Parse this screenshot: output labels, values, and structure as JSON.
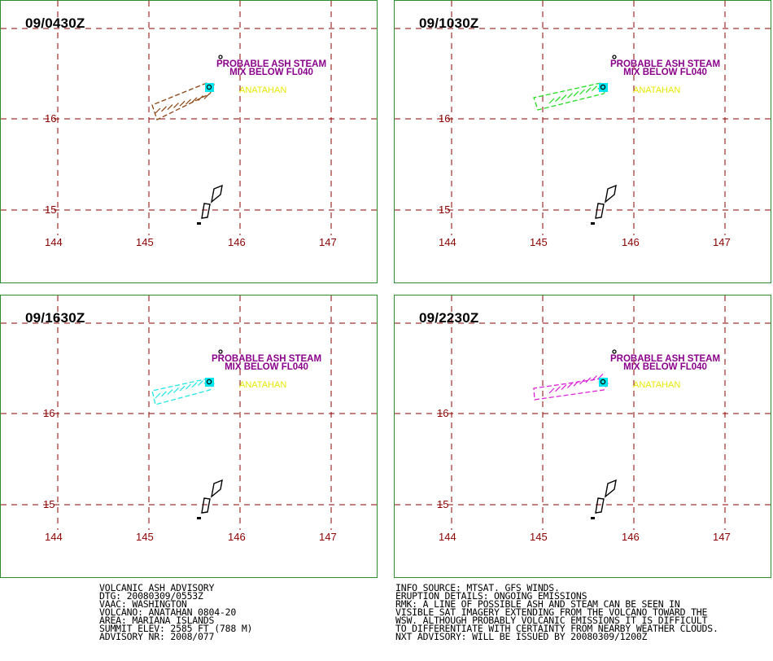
{
  "panels": [
    {
      "time": "09/0430Z",
      "plume_color": "#8b4513"
    },
    {
      "time": "09/1030Z",
      "plume_color": "#22dd22"
    },
    {
      "time": "09/1630Z",
      "plume_color": "#22e6e6"
    },
    {
      "time": "09/2230Z",
      "plume_color": "#dd22dd"
    }
  ],
  "map": {
    "lon_ticks": [
      "144",
      "145",
      "146",
      "147"
    ],
    "lat_ticks": [
      "16",
      "15"
    ],
    "annotation_line1": "PROBABLE ASH STEAM",
    "annotation_line2": "MIX BELOW FL040",
    "volcano_label": "ANATAHAN",
    "colors": {
      "grid": "#8b0000",
      "annotation": "#8b008b",
      "volcano_label": "#e8e800",
      "volcano_marker": "#00e5ee",
      "border": "#2e8b2e"
    }
  },
  "advisory_left": [
    "VOLCANIC ASH ADVISORY",
    "DTG: 20080309/0553Z",
    "VAAC: WASHINGTON",
    "VOLCANO: ANATAHAN 0804-20",
    "AREA: MARIANA ISLANDS",
    "SUMMIT ELEV: 2585 FT (788 M)",
    "ADVISORY NR: 2008/077"
  ],
  "advisory_right": [
    "INFO SOURCE: MTSAT. GFS WINDS.",
    "ERUPTION DETAILS: ONGOING EMISSIONS",
    "RMK: A LINE OF POSSIBLE ASH AND STEAM CAN BE SEEN IN",
    "VISIBLE SAT IMAGERY EXTENDING FROM THE VOLCANO TOWARD THE",
    "WSW. ALTHOUGH PROBABLY VOLCANIC EMISSIONS IT IS DIFFICULT",
    "TO DIFFERENTIATE WITH CERTAINTY FROM NEARBY WEATHER CLOUDS.",
    "NXT ADVISORY: WILL BE ISSUED BY 20080309/1200Z"
  ]
}
